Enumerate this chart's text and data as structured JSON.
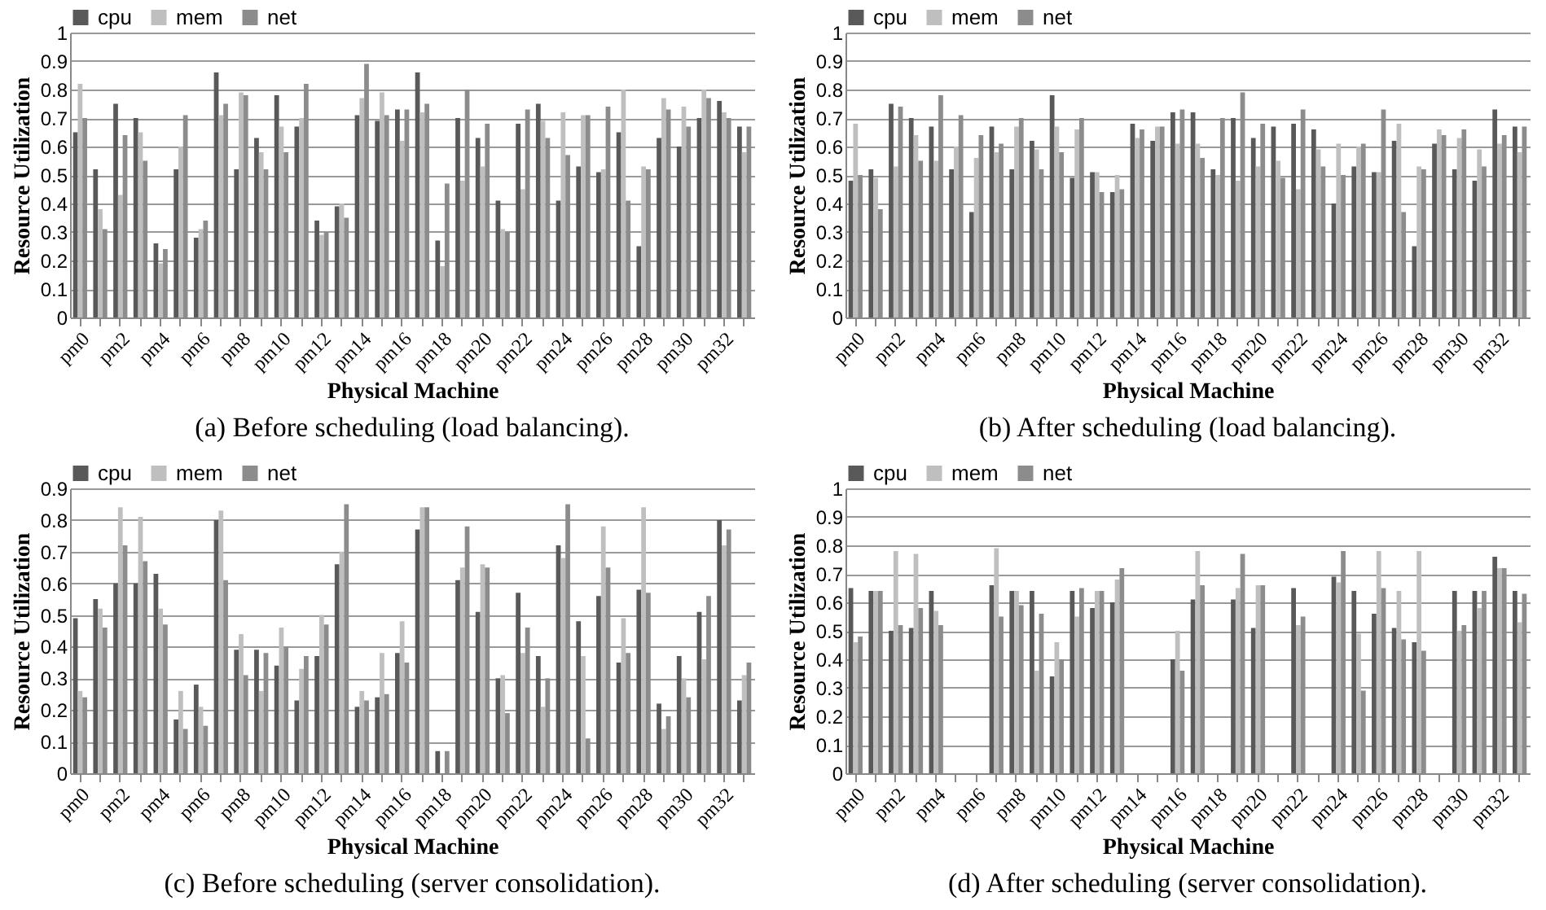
{
  "chart_data": [
    {
      "type": "bar",
      "title": "(a) Before scheduling (load balancing).",
      "xlabel": "Physical Machine",
      "ylabel": "Resource Utilization",
      "legend": "top",
      "grid": "y",
      "ylim": [
        0,
        1
      ],
      "yticks": [
        0,
        0.1,
        0.2,
        0.3,
        0.4,
        0.5,
        0.6,
        0.7,
        0.8,
        0.9,
        1
      ],
      "categories": [
        "pm0",
        null,
        "pm2",
        null,
        "pm4",
        null,
        "pm6",
        null,
        "pm8",
        null,
        "pm10",
        null,
        "pm12",
        null,
        "pm14",
        null,
        "pm16",
        null,
        "pm18",
        null,
        "pm20",
        null,
        "pm22",
        null,
        "pm24",
        null,
        "pm26",
        null,
        "pm28",
        null,
        "pm30",
        null,
        "pm32",
        null
      ],
      "series": [
        {
          "name": "cpu",
          "color": "#595959",
          "values": [
            0.65,
            0.52,
            0.75,
            0.7,
            0.26,
            0.52,
            0.28,
            0.86,
            0.52,
            0.63,
            0.78,
            0.67,
            0.34,
            0.39,
            0.71,
            0.69,
            0.73,
            0.86,
            0.27,
            0.7,
            0.63,
            0.41,
            0.68,
            0.75,
            0.41,
            0.53,
            0.51,
            0.65,
            0.25,
            0.63,
            0.6,
            0.7,
            0.76,
            0.67
          ]
        },
        {
          "name": "mem",
          "color": "#bfbfbf",
          "values": [
            0.82,
            0.38,
            0.43,
            0.65,
            0.19,
            0.6,
            0.31,
            0.71,
            0.79,
            0.58,
            0.67,
            0.7,
            0.29,
            0.4,
            0.77,
            0.79,
            0.62,
            0.72,
            0.18,
            0.48,
            0.53,
            0.31,
            0.45,
            0.69,
            0.72,
            0.71,
            0.52,
            0.8,
            0.53,
            0.77,
            0.74,
            0.8,
            0.72,
            0.58
          ]
        },
        {
          "name": "net",
          "color": "#8c8c8c",
          "values": [
            0.7,
            0.31,
            0.64,
            0.55,
            0.24,
            0.71,
            0.34,
            0.75,
            0.78,
            0.52,
            0.58,
            0.82,
            0.3,
            0.35,
            0.89,
            0.71,
            0.73,
            0.75,
            0.47,
            0.8,
            0.68,
            0.3,
            0.73,
            0.63,
            0.57,
            0.71,
            0.74,
            0.41,
            0.52,
            0.73,
            0.67,
            0.77,
            0.7,
            0.67
          ]
        }
      ]
    },
    {
      "type": "bar",
      "title": "(b) After scheduling (load balancing).",
      "xlabel": "Physical Machine",
      "ylabel": "Resource Utilization",
      "legend": "top",
      "grid": "y",
      "ylim": [
        0,
        1
      ],
      "yticks": [
        0,
        0.1,
        0.2,
        0.3,
        0.4,
        0.5,
        0.6,
        0.7,
        0.8,
        0.9,
        1
      ],
      "categories": [
        "pm0",
        null,
        "pm2",
        null,
        "pm4",
        null,
        "pm6",
        null,
        "pm8",
        null,
        "pm10",
        null,
        "pm12",
        null,
        "pm14",
        null,
        "pm16",
        null,
        "pm18",
        null,
        "pm20",
        null,
        "pm22",
        null,
        "pm24",
        null,
        "pm26",
        null,
        "pm28",
        null,
        "pm30",
        null,
        "pm32",
        null
      ],
      "series": [
        {
          "name": "cpu",
          "color": "#595959",
          "values": [
            0.48,
            0.52,
            0.75,
            0.7,
            0.67,
            0.52,
            0.37,
            0.67,
            0.52,
            0.62,
            0.78,
            0.49,
            0.51,
            0.44,
            0.68,
            0.62,
            0.72,
            0.72,
            0.52,
            0.7,
            0.63,
            0.67,
            0.68,
            0.66,
            0.4,
            0.53,
            0.51,
            0.62,
            0.25,
            0.61,
            0.52,
            0.48,
            0.73,
            0.67
          ]
        },
        {
          "name": "mem",
          "color": "#bfbfbf",
          "values": [
            0.68,
            0.49,
            0.53,
            0.64,
            0.55,
            0.6,
            0.56,
            0.58,
            0.67,
            0.59,
            0.67,
            0.66,
            0.51,
            0.5,
            0.63,
            0.67,
            0.61,
            0.61,
            0.5,
            0.48,
            0.53,
            0.55,
            0.45,
            0.59,
            0.61,
            0.6,
            0.51,
            0.68,
            0.53,
            0.66,
            0.63,
            0.59,
            0.61,
            0.58
          ]
        },
        {
          "name": "net",
          "color": "#8c8c8c",
          "values": [
            0.5,
            0.38,
            0.74,
            0.55,
            0.78,
            0.71,
            0.64,
            0.61,
            0.7,
            0.52,
            0.58,
            0.7,
            0.44,
            0.45,
            0.66,
            0.67,
            0.73,
            0.56,
            0.7,
            0.79,
            0.68,
            0.49,
            0.73,
            0.53,
            0.5,
            0.61,
            0.73,
            0.37,
            0.52,
            0.64,
            0.66,
            0.53,
            0.64,
            0.67
          ]
        }
      ]
    },
    {
      "type": "bar",
      "title": "(c) Before scheduling (server consolidation).",
      "xlabel": "Physical Machine",
      "ylabel": "Resource Utilization",
      "legend": "top",
      "grid": "y",
      "ylim": [
        0,
        0.9
      ],
      "yticks": [
        0,
        0.1,
        0.2,
        0.3,
        0.4,
        0.5,
        0.6,
        0.7,
        0.8,
        0.9
      ],
      "categories": [
        "pm0",
        null,
        "pm2",
        null,
        "pm4",
        null,
        "pm6",
        null,
        "pm8",
        null,
        "pm10",
        null,
        "pm12",
        null,
        "pm14",
        null,
        "pm16",
        null,
        "pm18",
        null,
        "pm20",
        null,
        "pm22",
        null,
        "pm24",
        null,
        "pm26",
        null,
        "pm28",
        null,
        "pm30",
        null,
        "pm32",
        null
      ],
      "series": [
        {
          "name": "cpu",
          "color": "#595959",
          "values": [
            0.49,
            0.55,
            0.6,
            0.6,
            0.63,
            0.17,
            0.28,
            0.8,
            0.39,
            0.39,
            0.34,
            0.23,
            0.37,
            0.66,
            0.21,
            0.24,
            0.38,
            0.77,
            0.07,
            0.61,
            0.51,
            0.3,
            0.57,
            0.37,
            0.72,
            0.48,
            0.56,
            0.35,
            0.58,
            0.22,
            0.37,
            0.51,
            0.8,
            0.23
          ]
        },
        {
          "name": "mem",
          "color": "#bfbfbf",
          "values": [
            0.26,
            0.52,
            0.84,
            0.81,
            0.52,
            0.26,
            0.21,
            0.83,
            0.44,
            0.26,
            0.46,
            0.33,
            0.5,
            0.7,
            0.26,
            0.38,
            0.48,
            0.84,
            null,
            0.65,
            0.66,
            0.31,
            0.38,
            0.21,
            0.68,
            0.37,
            0.78,
            0.49,
            0.84,
            0.14,
            0.3,
            0.36,
            0.72,
            0.31
          ]
        },
        {
          "name": "net",
          "color": "#8c8c8c",
          "values": [
            0.24,
            0.46,
            0.72,
            0.67,
            0.47,
            0.14,
            0.15,
            0.61,
            0.31,
            0.38,
            0.4,
            0.37,
            0.47,
            0.85,
            0.23,
            0.25,
            0.35,
            0.84,
            0.07,
            0.78,
            0.65,
            0.19,
            0.46,
            0.3,
            0.85,
            0.11,
            0.65,
            0.38,
            0.57,
            0.18,
            0.24,
            0.56,
            0.77,
            0.35
          ]
        }
      ]
    },
    {
      "type": "bar",
      "title": "(d) After scheduling (server consolidation).",
      "xlabel": "Physical Machine",
      "ylabel": "Resource Utilization",
      "legend": "top",
      "grid": "y",
      "ylim": [
        0,
        1
      ],
      "yticks": [
        0,
        0.1,
        0.2,
        0.3,
        0.4,
        0.5,
        0.6,
        0.7,
        0.8,
        0.9,
        1
      ],
      "categories": [
        "pm0",
        null,
        "pm2",
        null,
        "pm4",
        null,
        "pm6",
        null,
        "pm8",
        null,
        "pm10",
        null,
        "pm12",
        null,
        "pm14",
        null,
        "pm16",
        null,
        "pm18",
        null,
        "pm20",
        null,
        "pm22",
        null,
        "pm24",
        null,
        "pm26",
        null,
        "pm28",
        null,
        "pm30",
        null,
        "pm32",
        null
      ],
      "series": [
        {
          "name": "cpu",
          "color": "#595959",
          "values": [
            0.65,
            0.64,
            0.5,
            0.51,
            0.64,
            null,
            null,
            0.66,
            0.64,
            0.64,
            0.34,
            0.64,
            0.58,
            0.6,
            null,
            null,
            0.4,
            0.61,
            null,
            0.61,
            0.51,
            null,
            0.65,
            null,
            0.69,
            0.64,
            0.56,
            0.51,
            0.46,
            null,
            0.64,
            0.64,
            0.76,
            0.64
          ]
        },
        {
          "name": "mem",
          "color": "#bfbfbf",
          "values": [
            0.46,
            0.64,
            0.78,
            0.77,
            0.57,
            null,
            null,
            0.79,
            0.64,
            0.36,
            0.46,
            0.55,
            0.64,
            0.68,
            null,
            null,
            0.5,
            0.78,
            null,
            0.65,
            0.66,
            null,
            0.52,
            null,
            0.67,
            0.49,
            0.78,
            0.64,
            0.78,
            null,
            0.5,
            0.58,
            0.72,
            0.53
          ]
        },
        {
          "name": "net",
          "color": "#8c8c8c",
          "values": [
            0.48,
            0.64,
            0.52,
            0.58,
            0.52,
            null,
            null,
            0.55,
            0.59,
            0.56,
            0.4,
            0.65,
            0.64,
            0.72,
            null,
            null,
            0.36,
            0.66,
            null,
            0.77,
            0.66,
            null,
            0.55,
            null,
            0.78,
            0.29,
            0.65,
            0.47,
            0.43,
            null,
            0.52,
            0.64,
            0.72,
            0.63
          ]
        }
      ]
    }
  ]
}
